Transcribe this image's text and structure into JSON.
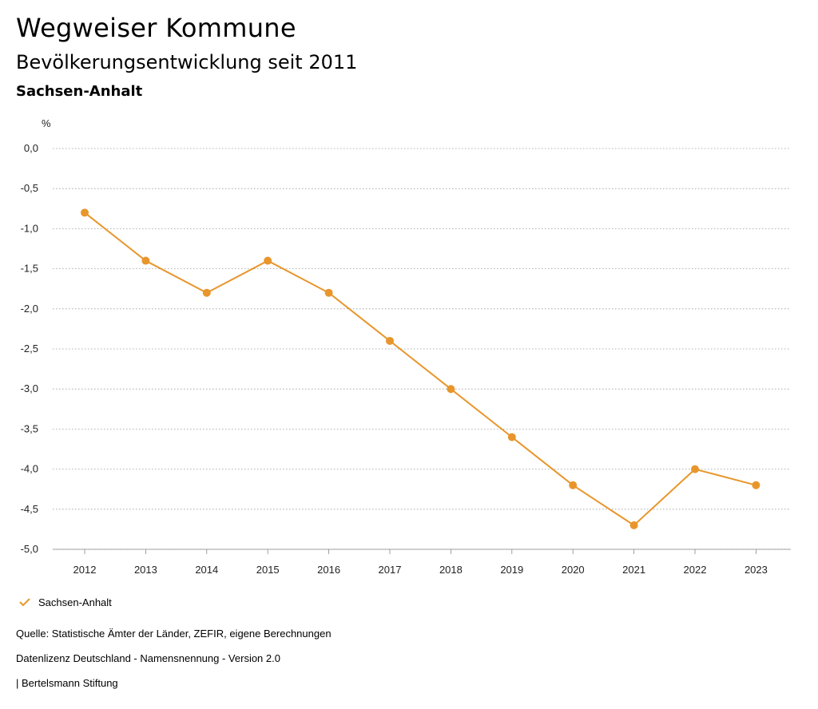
{
  "header": {
    "title": "Wegweiser Kommune",
    "subtitle": "Bevölkerungsentwicklung seit 2011",
    "region": "Sachsen-Anhalt"
  },
  "chart_data": {
    "type": "line",
    "title": "Bevölkerungsentwicklung seit 2011",
    "ylabel": "%",
    "xlabel": "",
    "ylim": [
      -5.0,
      0.0
    ],
    "y_ticks": [
      "0,0",
      "-0,5",
      "-1,0",
      "-1,5",
      "-2,0",
      "-2,5",
      "-3,0",
      "-3,5",
      "-4,0",
      "-4,5",
      "-5,0"
    ],
    "y_tick_values": [
      0,
      -0.5,
      -1.0,
      -1.5,
      -2.0,
      -2.5,
      -3.0,
      -3.5,
      -4.0,
      -4.5,
      -5.0
    ],
    "categories": [
      "2012",
      "2013",
      "2014",
      "2015",
      "2016",
      "2017",
      "2018",
      "2019",
      "2020",
      "2021",
      "2022",
      "2023"
    ],
    "series": [
      {
        "name": "Sachsen-Anhalt",
        "color": "#e8962c",
        "values": [
          -0.8,
          -1.4,
          -1.8,
          -1.4,
          -1.8,
          -2.4,
          -3.0,
          -3.6,
          -4.2,
          -4.7,
          -4.0,
          -4.2
        ]
      }
    ],
    "grid": true,
    "legend": "bottom-left"
  },
  "legend": {
    "label": "Sachsen-Anhalt",
    "icon": "check-icon",
    "color": "#e8962c"
  },
  "footer": {
    "source": "Quelle: Statistische Ämter der Länder, ZEFIR, eigene Berechnungen",
    "license": "Datenlizenz Deutschland - Namensnennung - Version 2.0",
    "brand": "| Bertelsmann Stiftung"
  }
}
